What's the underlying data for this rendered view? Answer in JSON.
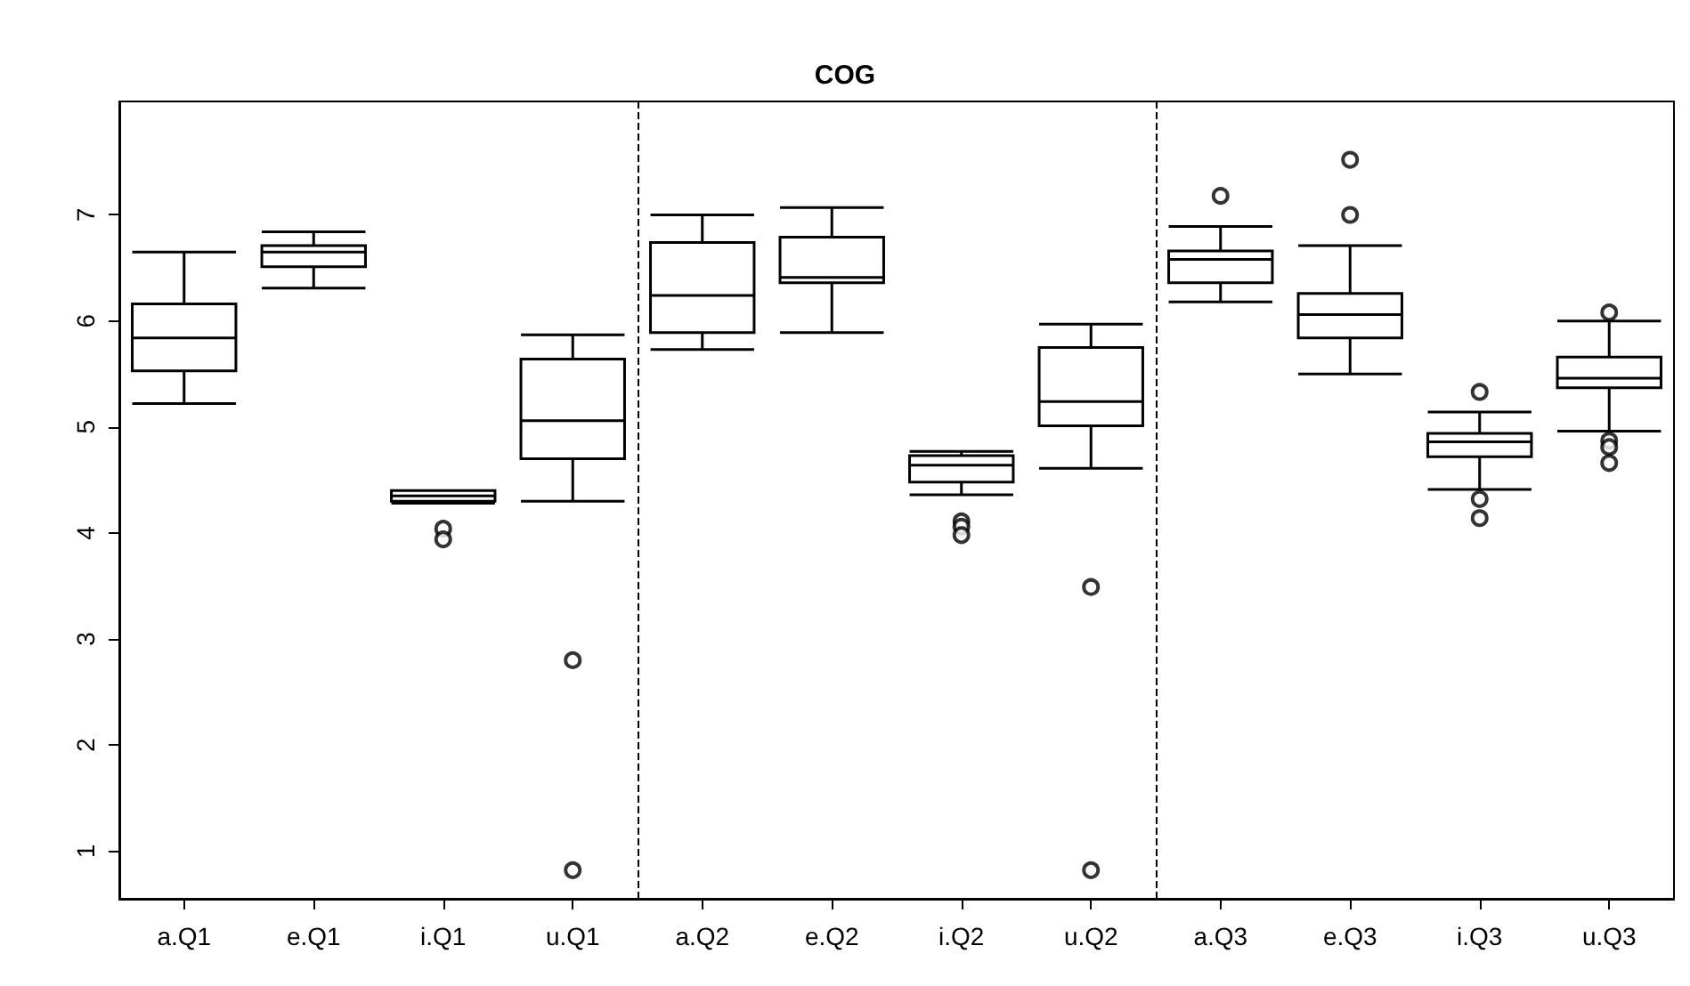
{
  "chart_data": {
    "type": "box",
    "title": "COG",
    "categories": [
      "a.Q1",
      "e.Q1",
      "i.Q1",
      "u.Q1",
      "a.Q2",
      "e.Q2",
      "i.Q2",
      "u.Q2",
      "a.Q3",
      "e.Q3",
      "i.Q3",
      "u.Q3"
    ],
    "boxes": [
      {
        "low": 5.22,
        "q1": 5.53,
        "median": 5.84,
        "q3": 6.16,
        "high": 6.65
      },
      {
        "low": 6.31,
        "q1": 6.51,
        "median": 6.65,
        "q3": 6.71,
        "high": 6.84
      },
      {
        "low": 4.28,
        "q1": 4.3,
        "median": 4.35,
        "q3": 4.4,
        "high": 4.4,
        "outliers": [
          4.04,
          3.94
        ]
      },
      {
        "low": 4.3,
        "q1": 4.7,
        "median": 5.06,
        "q3": 5.64,
        "high": 5.87,
        "outliers": [
          2.8,
          0.82
        ]
      },
      {
        "low": 5.73,
        "q1": 5.89,
        "median": 6.24,
        "q3": 6.74,
        "high": 7.0
      },
      {
        "low": 5.89,
        "q1": 6.36,
        "median": 6.41,
        "q3": 6.79,
        "high": 7.07
      },
      {
        "low": 4.36,
        "q1": 4.48,
        "median": 4.64,
        "q3": 4.73,
        "high": 4.77,
        "outliers": [
          4.11,
          4.06,
          3.98
        ]
      },
      {
        "low": 4.61,
        "q1": 5.01,
        "median": 5.24,
        "q3": 5.75,
        "high": 5.97,
        "outliers": [
          3.49,
          0.82
        ]
      },
      {
        "low": 6.18,
        "q1": 6.36,
        "median": 6.58,
        "q3": 6.66,
        "high": 6.89,
        "outliers": [
          7.18
        ]
      },
      {
        "low": 5.5,
        "q1": 5.84,
        "median": 6.06,
        "q3": 6.26,
        "high": 6.71,
        "outliers": [
          7.52,
          7.0
        ]
      },
      {
        "low": 4.41,
        "q1": 4.72,
        "median": 4.86,
        "q3": 4.94,
        "high": 5.14,
        "outliers": [
          5.33,
          4.32,
          4.14
        ]
      },
      {
        "low": 4.96,
        "q1": 5.37,
        "median": 5.46,
        "q3": 5.66,
        "high": 6.0,
        "outliers": [
          6.08,
          4.87,
          4.81,
          4.66
        ]
      }
    ],
    "ylim": [
      0.55,
      8.07
    ],
    "yticks": [
      1,
      2,
      3,
      4,
      5,
      6,
      7
    ],
    "grid": false,
    "marker": "circle"
  }
}
